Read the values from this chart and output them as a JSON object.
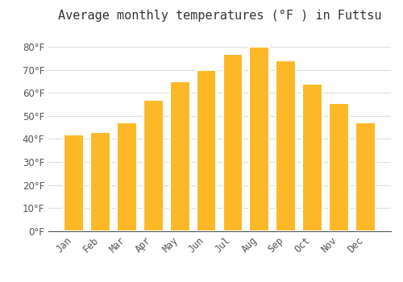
{
  "title": "Average monthly temperatures (°F ) in Futtsu",
  "months": [
    "Jan",
    "Feb",
    "Mar",
    "Apr",
    "May",
    "Jun",
    "Jul",
    "Aug",
    "Sep",
    "Oct",
    "Nov",
    "Dec"
  ],
  "values": [
    42,
    43,
    47,
    57,
    65,
    70,
    77,
    80,
    74,
    64,
    55.5,
    47
  ],
  "bar_color": "#FDB827",
  "bar_edge_color": "#FFFFFF",
  "background_color": "#FFFFFF",
  "grid_color": "#DDDDDD",
  "ylim": [
    0,
    88
  ],
  "yticks": [
    0,
    10,
    20,
    30,
    40,
    50,
    60,
    70,
    80
  ],
  "title_fontsize": 11,
  "tick_fontsize": 8.5,
  "bar_width": 0.75
}
